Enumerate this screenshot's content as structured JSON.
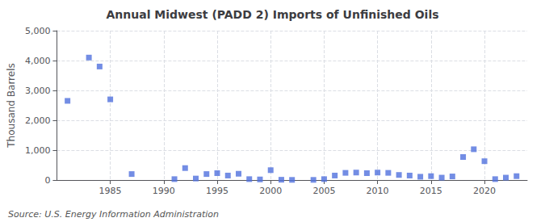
{
  "chart_data": {
    "type": "scatter",
    "title": "Annual Midwest (PADD 2) Imports of Unfinished Oils",
    "ylabel": "Thousand Barrels",
    "annotations": [
      "Source: U.S. Energy Information Administration"
    ],
    "x": [
      1981,
      1983,
      1984,
      1985,
      1987,
      1991,
      1992,
      1993,
      1994,
      1995,
      1996,
      1997,
      1998,
      1999,
      2000,
      2001,
      2002,
      2004,
      2005,
      2006,
      2007,
      2008,
      2009,
      2010,
      2011,
      2012,
      2013,
      2014,
      2015,
      2016,
      2017,
      2018,
      2019,
      2020,
      2021,
      2022,
      2023
    ],
    "values": [
      2650,
      4100,
      3800,
      2700,
      200,
      30,
      400,
      50,
      200,
      230,
      150,
      210,
      30,
      20,
      330,
      10,
      5,
      5,
      30,
      150,
      240,
      250,
      230,
      250,
      240,
      170,
      150,
      110,
      130,
      80,
      120,
      770,
      1030,
      630,
      30,
      80,
      130
    ],
    "marker": "square",
    "xlim": [
      1980,
      2024
    ],
    "xticks": [
      1985,
      1990,
      1995,
      2000,
      2005,
      2010,
      2015,
      2020
    ],
    "ylim": [
      0,
      5000
    ],
    "yticks": [
      0,
      {
        "value": 1000,
        "label": "1,000"
      },
      {
        "value": 2000,
        "label": "2,000"
      },
      {
        "value": 3000,
        "label": "3,000"
      },
      {
        "value": 4000,
        "label": "4,000"
      },
      {
        "value": 5000,
        "label": "5,000"
      }
    ],
    "grid": true
  }
}
